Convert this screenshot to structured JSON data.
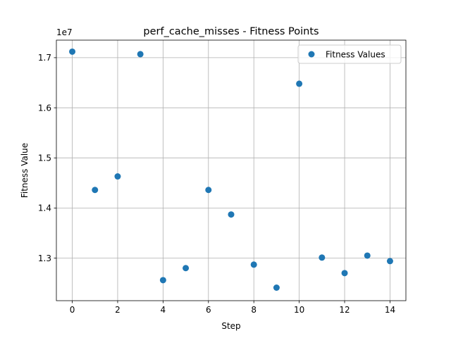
{
  "chart_data": {
    "type": "scatter",
    "title": "perf_cache_misses - Fitness Points",
    "xlabel": "Step",
    "ylabel": "Fitness Value",
    "y_offset_label": "1e7",
    "xlim": [
      -0.7,
      14.7
    ],
    "ylim": [
      12150000,
      17350000
    ],
    "xticks": [
      0,
      2,
      4,
      6,
      8,
      10,
      12,
      14
    ],
    "yticks": [
      13000000,
      14000000,
      15000000,
      16000000,
      17000000
    ],
    "ytick_labels": [
      "1.3",
      "1.4",
      "1.5",
      "1.6",
      "1.7"
    ],
    "grid": true,
    "legend_position": "top-right",
    "colors": {
      "marker": "#1f77b4",
      "grid": "#b0b0b0",
      "axis": "#000000"
    },
    "series": [
      {
        "name": "Fitness Values",
        "x": [
          0,
          1,
          2,
          3,
          4,
          5,
          6,
          7,
          8,
          9,
          10,
          11,
          12,
          13,
          14
        ],
        "y": [
          17120000,
          14360000,
          14630000,
          17070000,
          12560000,
          12800000,
          14360000,
          13870000,
          12870000,
          12410000,
          16480000,
          13010000,
          12700000,
          13050000,
          12940000
        ]
      }
    ]
  }
}
